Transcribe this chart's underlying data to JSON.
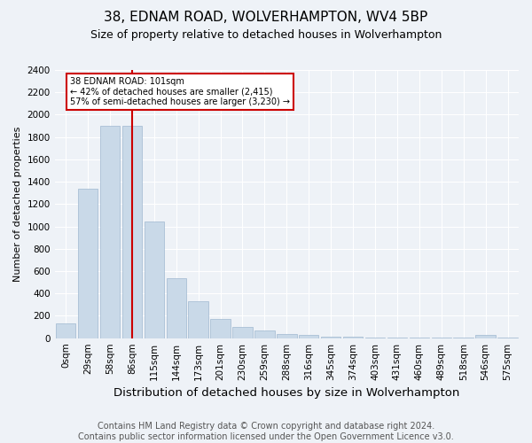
{
  "title": "38, EDNAM ROAD, WOLVERHAMPTON, WV4 5BP",
  "subtitle": "Size of property relative to detached houses in Wolverhampton",
  "xlabel": "Distribution of detached houses by size in Wolverhampton",
  "ylabel": "Number of detached properties",
  "footer_line1": "Contains HM Land Registry data © Crown copyright and database right 2024.",
  "footer_line2": "Contains public sector information licensed under the Open Government Licence v3.0.",
  "bin_labels": [
    "0sqm",
    "29sqm",
    "58sqm",
    "86sqm",
    "115sqm",
    "144sqm",
    "173sqm",
    "201sqm",
    "230sqm",
    "259sqm",
    "288sqm",
    "316sqm",
    "345sqm",
    "374sqm",
    "403sqm",
    "431sqm",
    "460sqm",
    "489sqm",
    "518sqm",
    "546sqm",
    "575sqm"
  ],
  "bar_values": [
    130,
    1340,
    1900,
    1900,
    1045,
    540,
    330,
    170,
    100,
    65,
    40,
    30,
    15,
    10,
    5,
    5,
    2,
    2,
    2,
    30,
    2
  ],
  "bar_color": "#c9d9e8",
  "bar_edgecolor": "#a0b8d0",
  "property_bin_index": 3,
  "vline_color": "#cc0000",
  "annotation_title": "38 EDNAM ROAD: 101sqm",
  "annotation_line1": "← 42% of detached houses are smaller (2,415)",
  "annotation_line2": "57% of semi-detached houses are larger (3,230) →",
  "annotation_box_color": "#cc0000",
  "ylim": [
    0,
    2400
  ],
  "yticks": [
    0,
    200,
    400,
    600,
    800,
    1000,
    1200,
    1400,
    1600,
    1800,
    2000,
    2200,
    2400
  ],
  "background_color": "#eef2f7",
  "grid_color": "#ffffff",
  "title_fontsize": 11,
  "subtitle_fontsize": 9,
  "xlabel_fontsize": 9.5,
  "ylabel_fontsize": 8,
  "footer_fontsize": 7,
  "tick_fontsize": 7.5
}
